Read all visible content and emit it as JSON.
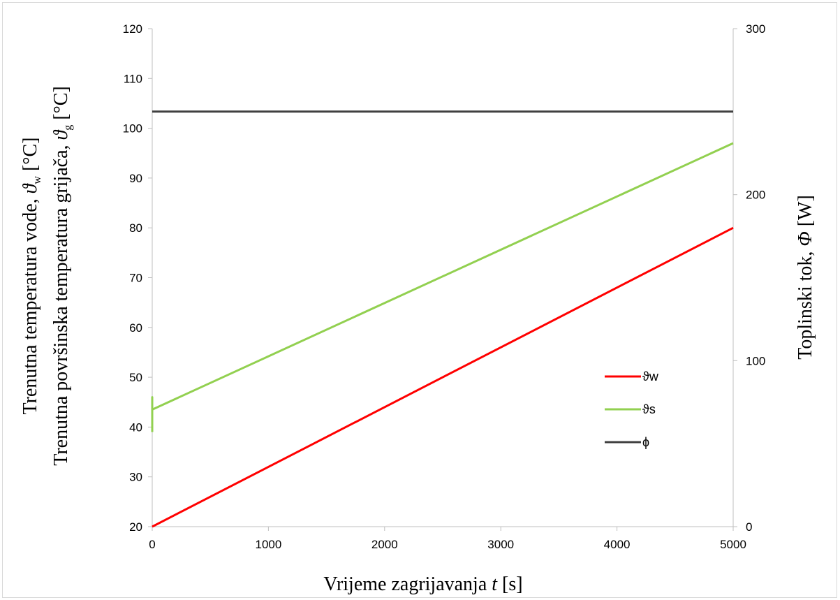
{
  "chart_data": {
    "type": "line",
    "x": [
      0,
      5000
    ],
    "xlim": [
      0,
      5000
    ],
    "ylim_left": [
      20,
      120
    ],
    "ylim_right": [
      0,
      300
    ],
    "x_ticks": [
      "0",
      "1000",
      "2000",
      "3000",
      "4000",
      "5000"
    ],
    "y_left_ticks": [
      "20",
      "30",
      "40",
      "50",
      "60",
      "70",
      "80",
      "90",
      "100",
      "110",
      "120"
    ],
    "y_right_ticks": [
      "0",
      "100",
      "200",
      "300"
    ],
    "xlabel": {
      "prefix": "Vrijeme  zagrijavanja  ",
      "var": "t",
      "unit": " [s]"
    },
    "ylabel_left_line1": {
      "text": "Trenutna temperatura vode, ",
      "var": "ϑ",
      "sub": "w",
      "unit": " [°C]"
    },
    "ylabel_left_line2": {
      "text": "Trenutna površinska temperatura grijača, ",
      "var": "ϑ",
      "sub": "g",
      "unit": " [°C]"
    },
    "ylabel_right": {
      "text": "Toplinski tok, ",
      "var": "Φ",
      "unit": " [W]"
    },
    "series": [
      {
        "name": "ϑw",
        "axis": "left",
        "color": "#ff0000",
        "x": [
          0,
          5000
        ],
        "y": [
          20,
          80
        ]
      },
      {
        "name": "ϑs",
        "axis": "left",
        "color": "#92d050",
        "x": [
          0,
          0,
          0,
          5000
        ],
        "y": [
          39,
          46,
          43.5,
          97
        ]
      },
      {
        "name": "ϕ",
        "axis": "right",
        "color": "#404040",
        "x": [
          0,
          5000
        ],
        "y": [
          250,
          250
        ]
      }
    ],
    "grid": false,
    "legend_position": "right-middle"
  }
}
